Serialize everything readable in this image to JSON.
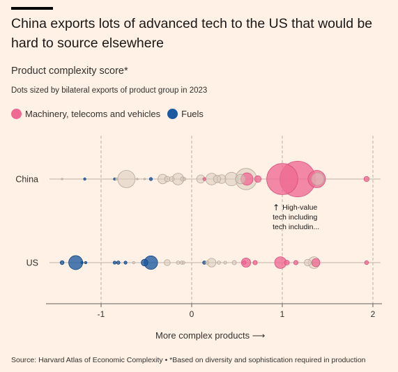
{
  "header": {
    "title": "China exports lots of advanced tech to the US that would be hard to source elsewhere",
    "subtitle": "Product complexity score*",
    "note": "Dots sized by bilateral exports of product group in 2023"
  },
  "legend": [
    {
      "label": "Machinery, telecoms and vehicles",
      "color": "#EE6A93"
    },
    {
      "label": "Fuels",
      "color": "#1B5AA1"
    }
  ],
  "colors": {
    "machinery": "#EE6A93",
    "fuels": "#1B5AA1",
    "other": "#D8CCBF",
    "other_stroke": "#B5A99D",
    "background": "#FFF1E5"
  },
  "annotation": {
    "arrow": "↑",
    "lines": [
      "High-value",
      "tech including",
      "tech includin..."
    ]
  },
  "x_axis_title": "More complex products",
  "x_axis_arrow": "⟶",
  "source": "Source: Harvard Atlas of Economic Complexity • *Based on diversity and sophistication required in production",
  "chart_data": {
    "type": "scatter",
    "xlim": [
      -1.6,
      2.1
    ],
    "xticks": [
      -1,
      0,
      1,
      2
    ],
    "categories": [
      "China",
      "US"
    ],
    "size_encoding": "bilateral exports 2023 (relative)",
    "series": [
      {
        "name": "China",
        "points": [
          {
            "x": -1.43,
            "size": 0.5,
            "group": "other"
          },
          {
            "x": -1.18,
            "size": 2,
            "group": "fuels"
          },
          {
            "x": -0.85,
            "size": 2,
            "group": "fuels"
          },
          {
            "x": -0.83,
            "size": 2,
            "group": "other"
          },
          {
            "x": -0.72,
            "size": 100,
            "group": "other"
          },
          {
            "x": -0.6,
            "size": 1,
            "group": "other"
          },
          {
            "x": -0.52,
            "size": 1,
            "group": "other"
          },
          {
            "x": -0.45,
            "size": 3,
            "group": "fuels"
          },
          {
            "x": -0.32,
            "size": 30,
            "group": "other"
          },
          {
            "x": -0.27,
            "size": 10,
            "group": "other"
          },
          {
            "x": -0.22,
            "size": 8,
            "group": "other"
          },
          {
            "x": -0.15,
            "size": 45,
            "group": "other"
          },
          {
            "x": -0.1,
            "size": 6,
            "group": "other"
          },
          {
            "x": -0.08,
            "size": 3,
            "group": "other"
          },
          {
            "x": 0.1,
            "size": 22,
            "group": "other"
          },
          {
            "x": 0.14,
            "size": 3,
            "group": "machinery"
          },
          {
            "x": 0.22,
            "size": 45,
            "group": "other"
          },
          {
            "x": 0.28,
            "size": 18,
            "group": "other"
          },
          {
            "x": 0.33,
            "size": 25,
            "group": "other"
          },
          {
            "x": 0.44,
            "size": 60,
            "group": "other"
          },
          {
            "x": 0.54,
            "size": 30,
            "group": "other"
          },
          {
            "x": 0.6,
            "size": 150,
            "group": "other"
          },
          {
            "x": 0.61,
            "size": 50,
            "group": "machinery"
          },
          {
            "x": 0.73,
            "size": 14,
            "group": "machinery"
          },
          {
            "x": 1.0,
            "size": 320,
            "group": "machinery"
          },
          {
            "x": 1.17,
            "size": 420,
            "group": "machinery"
          },
          {
            "x": 1.38,
            "size": 100,
            "group": "machinery"
          },
          {
            "x": 1.39,
            "size": 50,
            "group": "other"
          },
          {
            "x": 1.93,
            "size": 9,
            "group": "machinery"
          }
        ]
      },
      {
        "name": "US",
        "points": [
          {
            "x": -1.43,
            "size": 5,
            "group": "fuels"
          },
          {
            "x": -1.28,
            "size": 65,
            "group": "fuels"
          },
          {
            "x": -1.21,
            "size": 2,
            "group": "fuels"
          },
          {
            "x": -1.17,
            "size": 2,
            "group": "fuels"
          },
          {
            "x": -0.85,
            "size": 3,
            "group": "fuels"
          },
          {
            "x": -0.81,
            "size": 4,
            "group": "fuels"
          },
          {
            "x": -0.73,
            "size": 3,
            "group": "fuels"
          },
          {
            "x": -0.64,
            "size": 2,
            "group": "other"
          },
          {
            "x": -0.52,
            "size": 15,
            "group": "fuels"
          },
          {
            "x": -0.45,
            "size": 60,
            "group": "fuels"
          },
          {
            "x": -0.27,
            "size": 12,
            "group": "other"
          },
          {
            "x": -0.15,
            "size": 4,
            "group": "other"
          },
          {
            "x": -0.11,
            "size": 4,
            "group": "other"
          },
          {
            "x": -0.09,
            "size": 3,
            "group": "other"
          },
          {
            "x": 0.14,
            "size": 4,
            "group": "fuels"
          },
          {
            "x": 0.17,
            "size": 4,
            "group": "other"
          },
          {
            "x": 0.22,
            "size": 25,
            "group": "other"
          },
          {
            "x": 0.3,
            "size": 4,
            "group": "other"
          },
          {
            "x": 0.37,
            "size": 3,
            "group": "other"
          },
          {
            "x": 0.47,
            "size": 6,
            "group": "other"
          },
          {
            "x": 0.58,
            "size": 4,
            "group": "machinery"
          },
          {
            "x": 0.6,
            "size": 28,
            "group": "machinery"
          },
          {
            "x": 0.7,
            "size": 6,
            "group": "machinery"
          },
          {
            "x": 0.98,
            "size": 45,
            "group": "machinery"
          },
          {
            "x": 1.05,
            "size": 8,
            "group": "machinery"
          },
          {
            "x": 1.15,
            "size": 6,
            "group": "machinery"
          },
          {
            "x": 1.28,
            "size": 15,
            "group": "other"
          },
          {
            "x": 1.35,
            "size": 45,
            "group": "other"
          },
          {
            "x": 1.37,
            "size": 22,
            "group": "machinery"
          },
          {
            "x": 1.93,
            "size": 5,
            "group": "machinery"
          }
        ]
      }
    ]
  }
}
